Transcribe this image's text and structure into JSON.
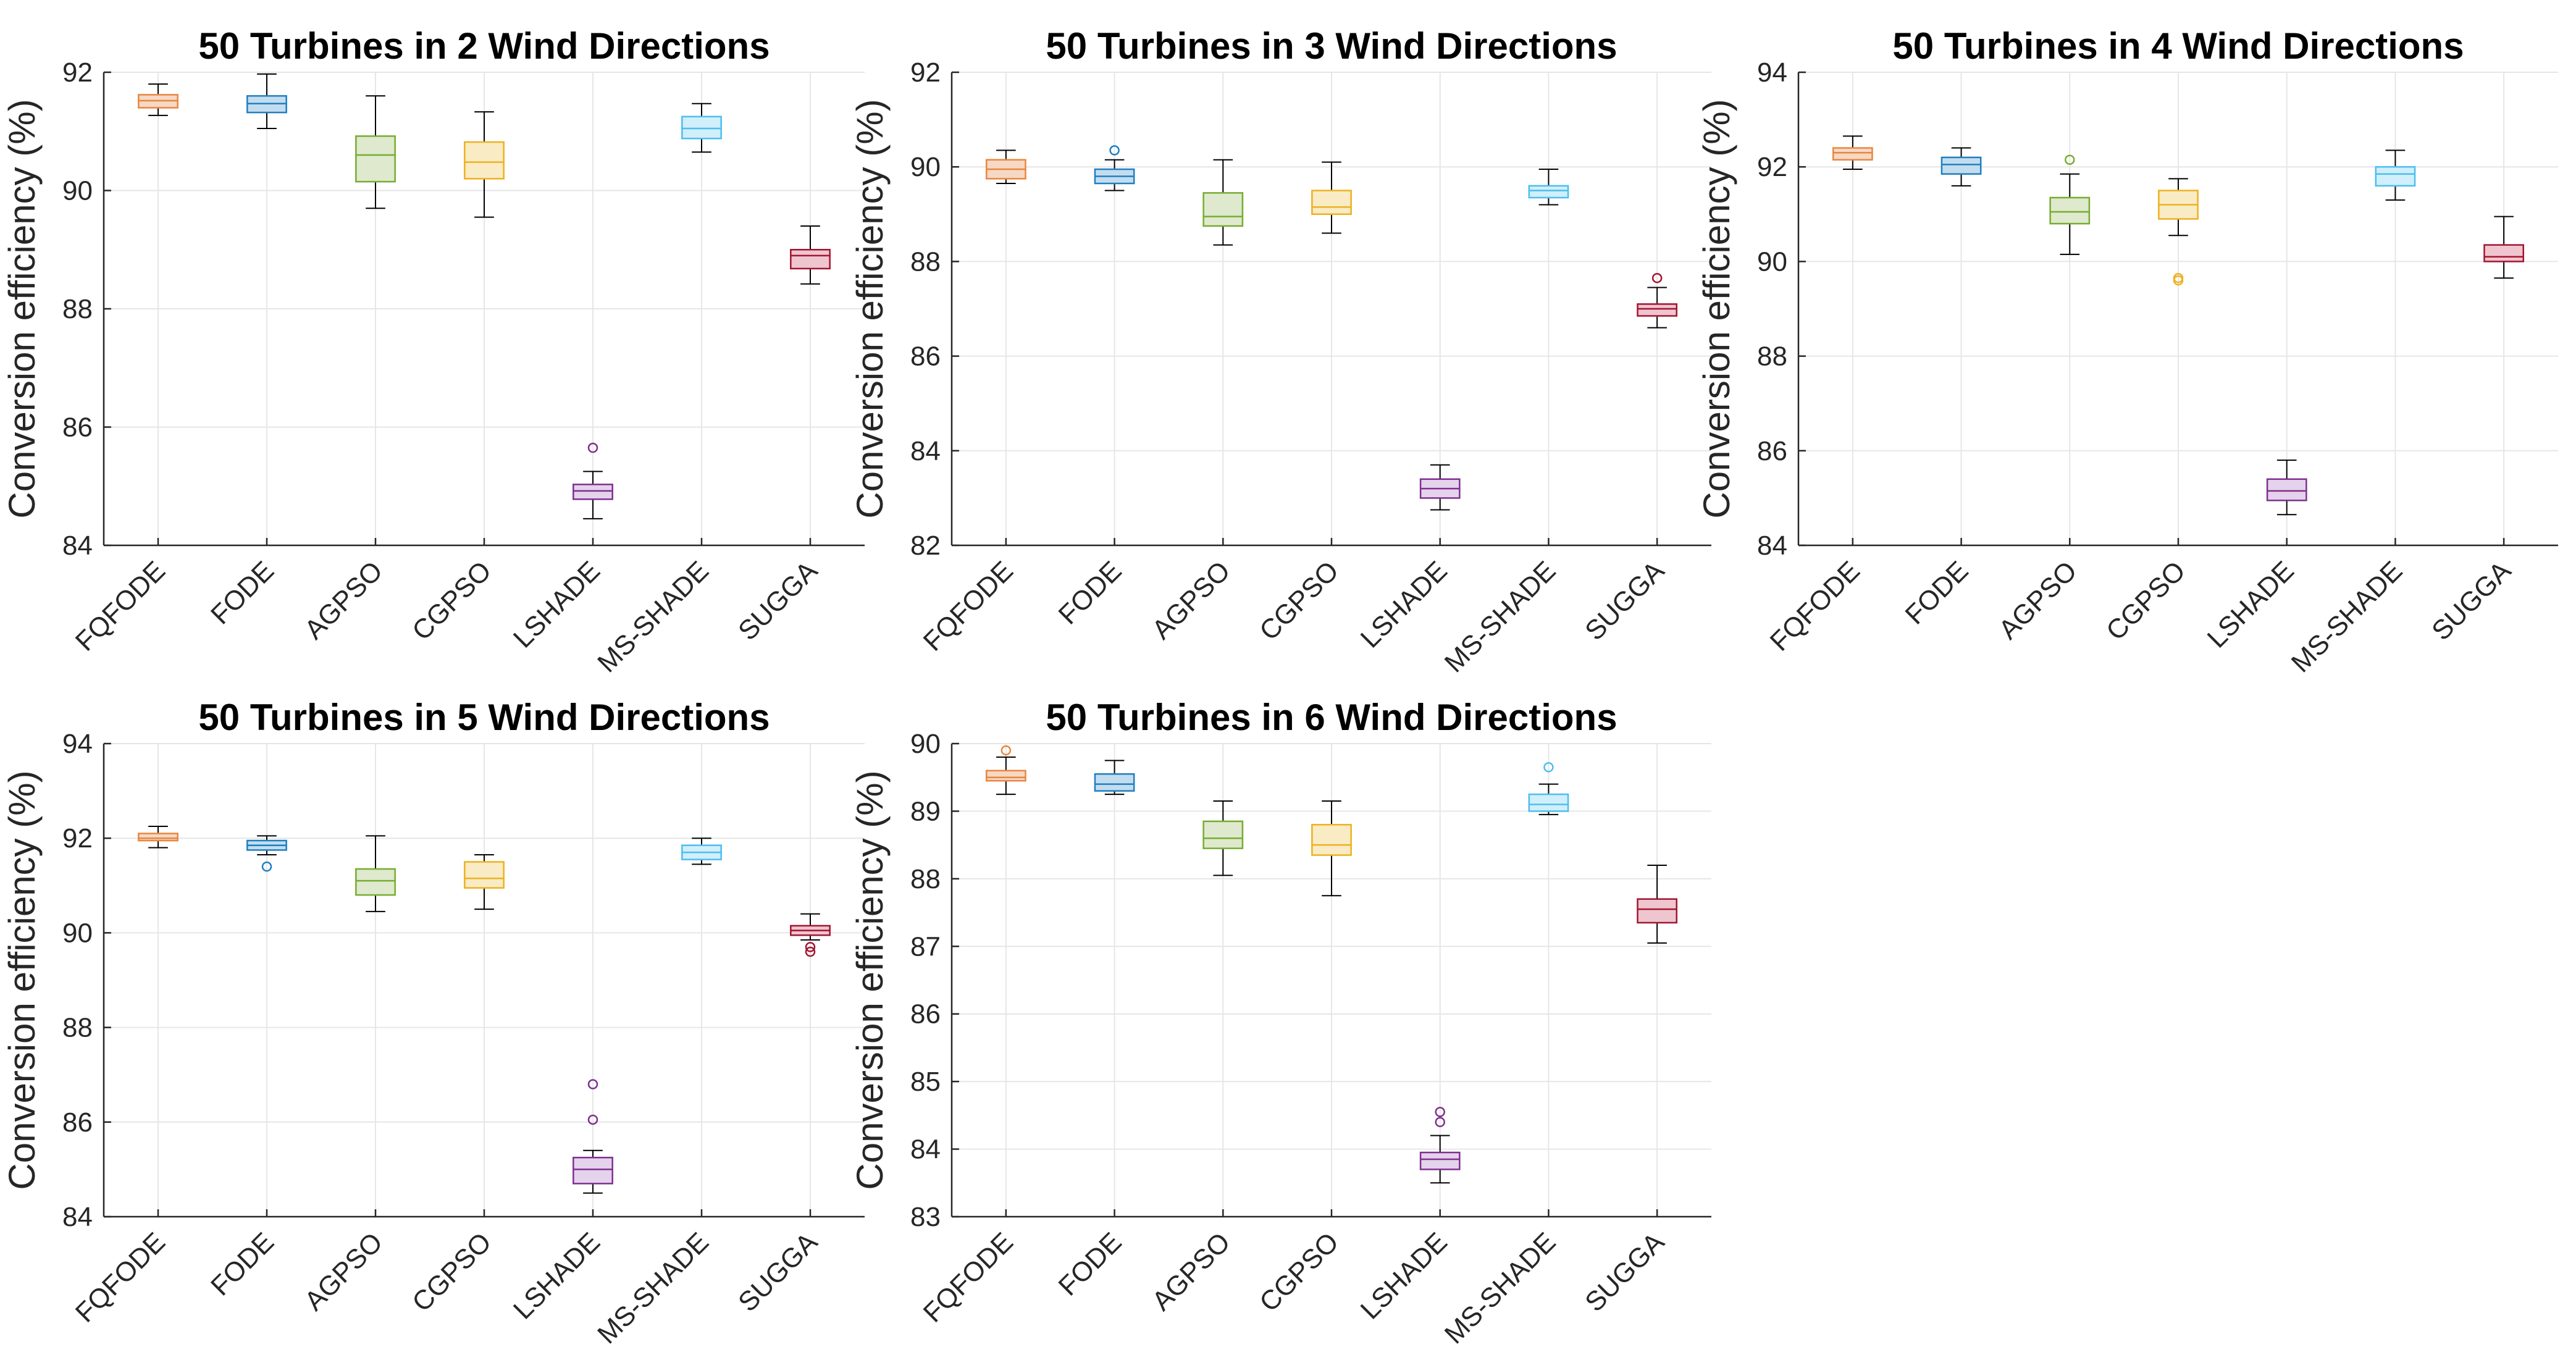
{
  "chart_data": [
    {
      "type": "boxplot",
      "title": "50 Turbines in 2 Wind Directions",
      "xlabel": "",
      "ylabel": "Conversion efficiency (%)",
      "ylim": [
        84,
        92
      ],
      "yticks": [
        84,
        86,
        88,
        90,
        92
      ],
      "grid": true,
      "categories": [
        "FQFODE",
        "FODE",
        "AGPSO",
        "CGPSO",
        "LSHADE",
        "MS-SHADE",
        "SUGGA"
      ],
      "boxes": [
        {
          "min": 91.27,
          "q1": 91.4,
          "median": 91.52,
          "q3": 91.62,
          "max": 91.8,
          "outliers": []
        },
        {
          "min": 91.05,
          "q1": 91.32,
          "median": 91.47,
          "q3": 91.6,
          "max": 91.97,
          "outliers": []
        },
        {
          "min": 89.7,
          "q1": 90.15,
          "median": 90.6,
          "q3": 90.92,
          "max": 91.6,
          "outliers": []
        },
        {
          "min": 89.55,
          "q1": 90.2,
          "median": 90.48,
          "q3": 90.82,
          "max": 91.33,
          "outliers": []
        },
        {
          "min": 84.45,
          "q1": 84.78,
          "median": 84.92,
          "q3": 85.03,
          "max": 85.25,
          "outliers": [
            85.65
          ]
        },
        {
          "min": 90.65,
          "q1": 90.88,
          "median": 91.05,
          "q3": 91.25,
          "max": 91.47,
          "outliers": []
        },
        {
          "min": 88.42,
          "q1": 88.68,
          "median": 88.9,
          "q3": 89.0,
          "max": 89.4,
          "outliers": []
        }
      ]
    },
    {
      "type": "boxplot",
      "title": "50 Turbines in 3 Wind Directions",
      "xlabel": "",
      "ylabel": "Conversion efficiency (%)",
      "ylim": [
        82,
        92
      ],
      "yticks": [
        82,
        84,
        86,
        88,
        90,
        92
      ],
      "grid": true,
      "categories": [
        "FQFODE",
        "FODE",
        "AGPSO",
        "CGPSO",
        "LSHADE",
        "MS-SHADE",
        "SUGGA"
      ],
      "boxes": [
        {
          "min": 89.65,
          "q1": 89.75,
          "median": 89.95,
          "q3": 90.15,
          "max": 90.35,
          "outliers": []
        },
        {
          "min": 89.5,
          "q1": 89.65,
          "median": 89.8,
          "q3": 89.95,
          "max": 90.15,
          "outliers": [
            90.35
          ]
        },
        {
          "min": 88.35,
          "q1": 88.75,
          "median": 88.95,
          "q3": 89.45,
          "max": 90.15,
          "outliers": []
        },
        {
          "min": 88.6,
          "q1": 89.0,
          "median": 89.15,
          "q3": 89.5,
          "max": 90.1,
          "outliers": []
        },
        {
          "min": 82.75,
          "q1": 83.0,
          "median": 83.2,
          "q3": 83.4,
          "max": 83.7,
          "outliers": []
        },
        {
          "min": 89.2,
          "q1": 89.35,
          "median": 89.5,
          "q3": 89.6,
          "max": 89.95,
          "outliers": []
        },
        {
          "min": 86.6,
          "q1": 86.85,
          "median": 87.0,
          "q3": 87.1,
          "max": 87.45,
          "outliers": [
            87.65
          ]
        }
      ]
    },
    {
      "type": "boxplot",
      "title": "50 Turbines in 4 Wind Directions",
      "xlabel": "",
      "ylabel": "Conversion efficiency (%)",
      "ylim": [
        84,
        94
      ],
      "yticks": [
        84,
        86,
        88,
        90,
        92,
        94
      ],
      "grid": true,
      "categories": [
        "FQFODE",
        "FODE",
        "AGPSO",
        "CGPSO",
        "LSHADE",
        "MS-SHADE",
        "SUGGA"
      ],
      "boxes": [
        {
          "min": 91.95,
          "q1": 92.15,
          "median": 92.3,
          "q3": 92.4,
          "max": 92.65,
          "outliers": []
        },
        {
          "min": 91.6,
          "q1": 91.85,
          "median": 92.05,
          "q3": 92.2,
          "max": 92.4,
          "outliers": []
        },
        {
          "min": 90.15,
          "q1": 90.8,
          "median": 91.05,
          "q3": 91.35,
          "max": 91.85,
          "outliers": [
            92.15
          ]
        },
        {
          "min": 90.55,
          "q1": 90.9,
          "median": 91.2,
          "q3": 91.5,
          "max": 91.75,
          "outliers": [
            89.65,
            89.6
          ]
        },
        {
          "min": 84.65,
          "q1": 84.95,
          "median": 85.15,
          "q3": 85.4,
          "max": 85.8,
          "outliers": []
        },
        {
          "min": 91.3,
          "q1": 91.6,
          "median": 91.85,
          "q3": 92.0,
          "max": 92.35,
          "outliers": []
        },
        {
          "min": 89.65,
          "q1": 90.0,
          "median": 90.1,
          "q3": 90.35,
          "max": 90.95,
          "outliers": []
        }
      ]
    },
    {
      "type": "boxplot",
      "title": "50 Turbines in 5 Wind Directions",
      "xlabel": "",
      "ylabel": "Conversion efficiency (%)",
      "ylim": [
        84,
        94
      ],
      "yticks": [
        84,
        86,
        88,
        90,
        92,
        94
      ],
      "grid": true,
      "categories": [
        "FQFODE",
        "FODE",
        "AGPSO",
        "CGPSO",
        "LSHADE",
        "MS-SHADE",
        "SUGGA"
      ],
      "boxes": [
        {
          "min": 91.8,
          "q1": 91.95,
          "median": 92.0,
          "q3": 92.1,
          "max": 92.25,
          "outliers": []
        },
        {
          "min": 91.65,
          "q1": 91.75,
          "median": 91.85,
          "q3": 91.95,
          "max": 92.05,
          "outliers": [
            91.4
          ]
        },
        {
          "min": 90.45,
          "q1": 90.8,
          "median": 91.1,
          "q3": 91.35,
          "max": 92.05,
          "outliers": []
        },
        {
          "min": 90.5,
          "q1": 90.95,
          "median": 91.15,
          "q3": 91.5,
          "max": 91.65,
          "outliers": []
        },
        {
          "min": 84.5,
          "q1": 84.7,
          "median": 85.0,
          "q3": 85.25,
          "max": 85.4,
          "outliers": [
            86.8,
            86.05
          ]
        },
        {
          "min": 91.45,
          "q1": 91.55,
          "median": 91.7,
          "q3": 91.85,
          "max": 92.0,
          "outliers": []
        },
        {
          "min": 89.85,
          "q1": 89.95,
          "median": 90.05,
          "q3": 90.15,
          "max": 90.4,
          "outliers": [
            89.7,
            89.6
          ]
        }
      ]
    },
    {
      "type": "boxplot",
      "title": "50 Turbines in 6 Wind Directions",
      "xlabel": "",
      "ylabel": "Conversion efficiency (%)",
      "ylim": [
        83,
        90
      ],
      "yticks": [
        83,
        84,
        85,
        86,
        87,
        88,
        89,
        90
      ],
      "grid": true,
      "categories": [
        "FQFODE",
        "FODE",
        "AGPSO",
        "CGPSO",
        "LSHADE",
        "MS-SHADE",
        "SUGGA"
      ],
      "boxes": [
        {
          "min": 89.25,
          "q1": 89.45,
          "median": 89.5,
          "q3": 89.6,
          "max": 89.8,
          "outliers": [
            89.9
          ]
        },
        {
          "min": 89.25,
          "q1": 89.3,
          "median": 89.4,
          "q3": 89.55,
          "max": 89.75,
          "outliers": []
        },
        {
          "min": 88.05,
          "q1": 88.45,
          "median": 88.6,
          "q3": 88.85,
          "max": 89.15,
          "outliers": []
        },
        {
          "min": 87.75,
          "q1": 88.35,
          "median": 88.5,
          "q3": 88.8,
          "max": 89.15,
          "outliers": []
        },
        {
          "min": 83.5,
          "q1": 83.7,
          "median": 83.85,
          "q3": 83.95,
          "max": 84.2,
          "outliers": [
            84.55,
            84.4
          ]
        },
        {
          "min": 88.95,
          "q1": 89.0,
          "median": 89.1,
          "q3": 89.25,
          "max": 89.4,
          "outliers": [
            89.65
          ]
        },
        {
          "min": 87.05,
          "q1": 87.35,
          "median": 87.55,
          "q3": 87.7,
          "max": 88.2,
          "outliers": []
        }
      ]
    }
  ],
  "colors": {
    "series": [
      "#E8873F",
      "#1F7FC0",
      "#77AC30",
      "#EDB120",
      "#7E2F8E",
      "#4DBEEE",
      "#A2142F"
    ],
    "fills": [
      "#F6D8C4",
      "#C3DDEF",
      "#DEE9CD",
      "#F9EBC4",
      "#E5D2EC",
      "#D0EFFB",
      "#EFC5CF"
    ],
    "axis": "#262626",
    "whisker": "#000000",
    "grid": "#E6E6E6"
  }
}
